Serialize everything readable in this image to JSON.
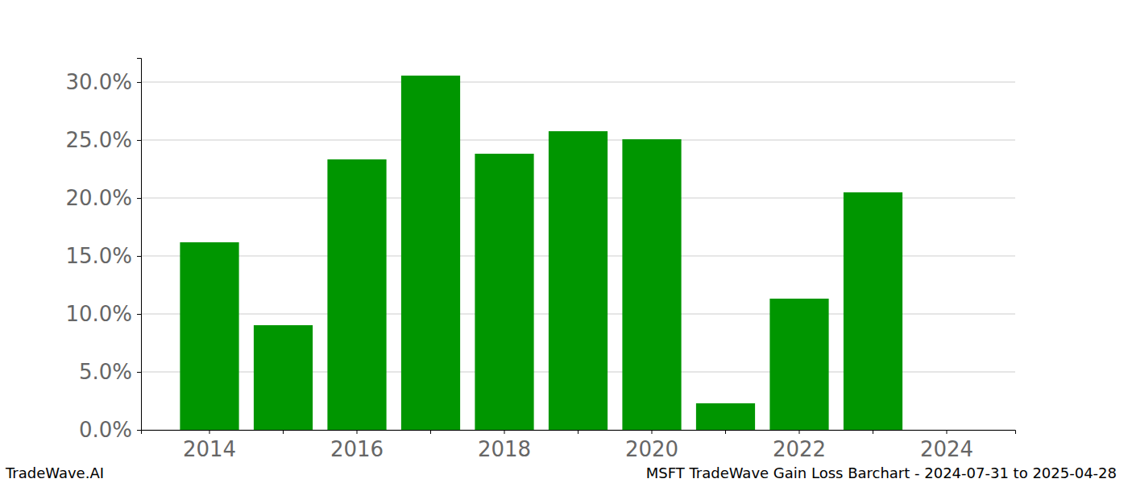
{
  "chart_data": {
    "type": "bar",
    "title": "MSFT TradeWave Gain Loss Barchart - 2024-07-31 to 2025-04-28",
    "annotations": [
      "TradeWave.AI"
    ],
    "categories": [
      "2014",
      null,
      "2016",
      null,
      "2018",
      null,
      "2020",
      null,
      "2022",
      null,
      "2024"
    ],
    "values": [
      16.18,
      9.03,
      23.33,
      30.56,
      23.82,
      25.76,
      25.07,
      2.29,
      11.32,
      20.49,
      0
    ],
    "color": "#009600",
    "ylim": [
      0,
      32.08
    ],
    "yticks": [
      {
        "value": 0,
        "label": "0.0%"
      },
      {
        "value": 5,
        "label": "5.0%"
      },
      {
        "value": 10,
        "label": "10.0%"
      },
      {
        "value": 15,
        "label": "15.0%"
      },
      {
        "value": 20,
        "label": "20.0%"
      },
      {
        "value": 25,
        "label": "25.0%"
      },
      {
        "value": 30,
        "label": "30.0%"
      }
    ],
    "grid": true
  }
}
